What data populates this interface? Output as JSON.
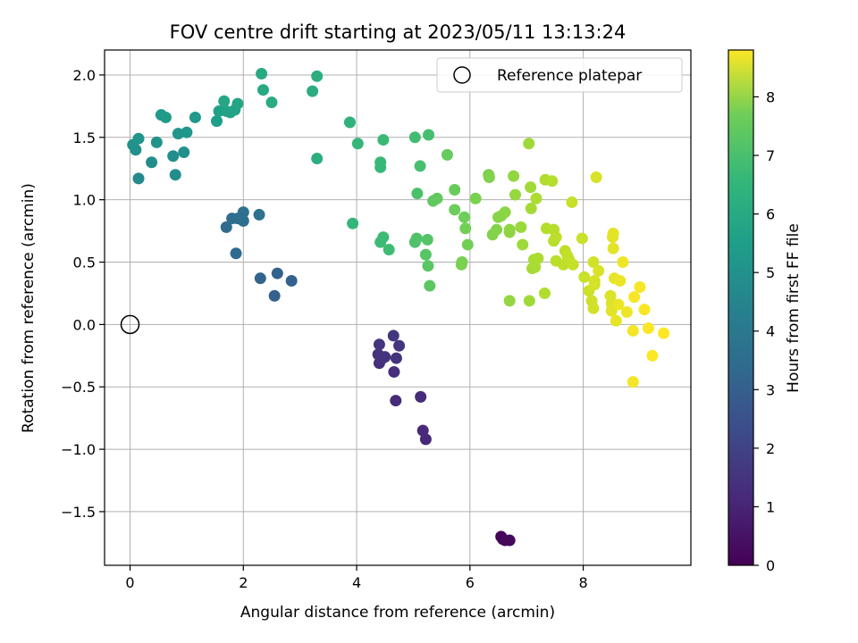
{
  "chart_data": {
    "type": "scatter",
    "title": "FOV centre drift starting at 2023/05/11 13:13:24",
    "xlabel": "Angular distance from reference (arcmin)",
    "ylabel": "Rotation from reference (arcmin)",
    "xlim": [
      -0.45,
      9.9
    ],
    "ylim": [
      -1.93,
      2.2
    ],
    "x_ticks": [
      0,
      2,
      4,
      6,
      8
    ],
    "x_tick_labels": [
      "0",
      "2",
      "4",
      "6",
      "8"
    ],
    "y_ticks": [
      -1.5,
      -1.0,
      -0.5,
      0.0,
      0.5,
      1.0,
      1.5,
      2.0
    ],
    "y_tick_labels": [
      "−1.5",
      "−1.0",
      "−0.5",
      "0.0",
      "0.5",
      "1.0",
      "1.5",
      "2.0"
    ],
    "grid": true,
    "legend": {
      "position": "top-right",
      "entries": [
        "Reference platepar"
      ]
    },
    "reference_point": {
      "name": "Reference platepar",
      "x": 0,
      "y": 0
    },
    "colorbar": {
      "label": "Hours from first FF file",
      "range": [
        0,
        8.8
      ],
      "ticks": [
        0,
        1,
        2,
        3,
        4,
        5,
        6,
        7,
        8
      ],
      "tick_labels": [
        "0",
        "1",
        "2",
        "3",
        "4",
        "5",
        "6",
        "7",
        "8"
      ],
      "colormap": "viridis"
    },
    "points": [
      {
        "x": 6.55,
        "y": -1.7,
        "c": 0.05
      },
      {
        "x": 6.58,
        "y": -1.72,
        "c": 0.1
      },
      {
        "x": 6.62,
        "y": -1.73,
        "c": 0.15
      },
      {
        "x": 6.7,
        "y": -1.73,
        "c": 0.2
      },
      {
        "x": 5.22,
        "y": -0.92,
        "c": 1.0
      },
      {
        "x": 5.17,
        "y": -0.85,
        "c": 1.05
      },
      {
        "x": 5.13,
        "y": -0.58,
        "c": 1.1
      },
      {
        "x": 4.69,
        "y": -0.61,
        "c": 1.1
      },
      {
        "x": 4.66,
        "y": -0.38,
        "c": 1.2
      },
      {
        "x": 4.4,
        "y": -0.31,
        "c": 1.2
      },
      {
        "x": 4.5,
        "y": -0.26,
        "c": 1.25
      },
      {
        "x": 4.38,
        "y": -0.24,
        "c": 1.25
      },
      {
        "x": 4.46,
        "y": -0.27,
        "c": 1.3
      },
      {
        "x": 4.7,
        "y": -0.27,
        "c": 1.3
      },
      {
        "x": 4.4,
        "y": -0.16,
        "c": 1.35
      },
      {
        "x": 4.75,
        "y": -0.17,
        "c": 1.35
      },
      {
        "x": 4.65,
        "y": -0.09,
        "c": 1.4
      },
      {
        "x": 2.55,
        "y": 0.23,
        "c": 2.7
      },
      {
        "x": 2.85,
        "y": 0.35,
        "c": 2.7
      },
      {
        "x": 2.6,
        "y": 0.41,
        "c": 2.75
      },
      {
        "x": 2.3,
        "y": 0.37,
        "c": 2.8
      },
      {
        "x": 1.87,
        "y": 0.57,
        "c": 3.0
      },
      {
        "x": 1.7,
        "y": 0.78,
        "c": 3.1
      },
      {
        "x": 1.8,
        "y": 0.85,
        "c": 3.15
      },
      {
        "x": 1.9,
        "y": 0.85,
        "c": 3.2
      },
      {
        "x": 2.0,
        "y": 0.83,
        "c": 3.2
      },
      {
        "x": 2.0,
        "y": 0.9,
        "c": 3.25
      },
      {
        "x": 2.28,
        "y": 0.88,
        "c": 3.3
      },
      {
        "x": 0.15,
        "y": 1.17,
        "c": 4.2
      },
      {
        "x": 0.8,
        "y": 1.2,
        "c": 4.3
      },
      {
        "x": 0.38,
        "y": 1.3,
        "c": 4.3
      },
      {
        "x": 0.76,
        "y": 1.35,
        "c": 4.35
      },
      {
        "x": 0.95,
        "y": 1.38,
        "c": 4.4
      },
      {
        "x": 0.1,
        "y": 1.4,
        "c": 4.4
      },
      {
        "x": 0.05,
        "y": 1.44,
        "c": 4.45
      },
      {
        "x": 0.47,
        "y": 1.46,
        "c": 4.5
      },
      {
        "x": 0.15,
        "y": 1.49,
        "c": 4.55
      },
      {
        "x": 0.85,
        "y": 1.53,
        "c": 4.6
      },
      {
        "x": 1.0,
        "y": 1.54,
        "c": 4.65
      },
      {
        "x": 1.15,
        "y": 1.66,
        "c": 4.7
      },
      {
        "x": 0.55,
        "y": 1.68,
        "c": 4.75
      },
      {
        "x": 0.63,
        "y": 1.66,
        "c": 4.8
      },
      {
        "x": 1.53,
        "y": 1.63,
        "c": 4.9
      },
      {
        "x": 1.57,
        "y": 1.71,
        "c": 5.0
      },
      {
        "x": 1.7,
        "y": 1.71,
        "c": 5.0
      },
      {
        "x": 1.77,
        "y": 1.7,
        "c": 5.05
      },
      {
        "x": 1.85,
        "y": 1.72,
        "c": 5.1
      },
      {
        "x": 1.9,
        "y": 1.77,
        "c": 5.15
      },
      {
        "x": 1.66,
        "y": 1.79,
        "c": 5.2
      },
      {
        "x": 2.35,
        "y": 1.88,
        "c": 5.3
      },
      {
        "x": 2.32,
        "y": 2.01,
        "c": 5.35
      },
      {
        "x": 2.5,
        "y": 1.78,
        "c": 5.4
      },
      {
        "x": 3.22,
        "y": 1.87,
        "c": 5.45
      },
      {
        "x": 3.3,
        "y": 1.99,
        "c": 5.5
      },
      {
        "x": 3.3,
        "y": 1.33,
        "c": 5.5
      },
      {
        "x": 3.88,
        "y": 1.62,
        "c": 5.65
      },
      {
        "x": 3.93,
        "y": 0.81,
        "c": 5.8
      },
      {
        "x": 4.02,
        "y": 1.45,
        "c": 5.8
      },
      {
        "x": 4.42,
        "y": 1.3,
        "c": 5.9
      },
      {
        "x": 4.42,
        "y": 1.26,
        "c": 5.9
      },
      {
        "x": 4.47,
        "y": 1.48,
        "c": 5.95
      },
      {
        "x": 4.42,
        "y": 0.66,
        "c": 6.0
      },
      {
        "x": 4.47,
        "y": 0.7,
        "c": 6.0
      },
      {
        "x": 4.57,
        "y": 0.6,
        "c": 6.05
      },
      {
        "x": 5.03,
        "y": 1.5,
        "c": 6.1
      },
      {
        "x": 5.27,
        "y": 1.52,
        "c": 6.15
      },
      {
        "x": 5.12,
        "y": 1.27,
        "c": 6.2
      },
      {
        "x": 5.07,
        "y": 1.05,
        "c": 6.25
      },
      {
        "x": 5.03,
        "y": 0.66,
        "c": 6.3
      },
      {
        "x": 5.06,
        "y": 0.69,
        "c": 6.35
      },
      {
        "x": 5.25,
        "y": 0.68,
        "c": 6.4
      },
      {
        "x": 5.22,
        "y": 0.56,
        "c": 6.45
      },
      {
        "x": 5.26,
        "y": 0.47,
        "c": 6.5
      },
      {
        "x": 5.29,
        "y": 0.31,
        "c": 6.55
      },
      {
        "x": 5.35,
        "y": 0.99,
        "c": 6.6
      },
      {
        "x": 5.42,
        "y": 1.01,
        "c": 6.65
      },
      {
        "x": 5.6,
        "y": 1.36,
        "c": 6.7
      },
      {
        "x": 5.73,
        "y": 1.08,
        "c": 6.75
      },
      {
        "x": 5.73,
        "y": 0.92,
        "c": 6.8
      },
      {
        "x": 5.9,
        "y": 0.86,
        "c": 6.85
      },
      {
        "x": 5.92,
        "y": 0.77,
        "c": 6.9
      },
      {
        "x": 5.96,
        "y": 0.64,
        "c": 6.9
      },
      {
        "x": 5.86,
        "y": 0.5,
        "c": 6.95
      },
      {
        "x": 5.85,
        "y": 0.48,
        "c": 7.0
      },
      {
        "x": 6.1,
        "y": 1.01,
        "c": 7.0
      },
      {
        "x": 6.33,
        "y": 1.2,
        "c": 7.05
      },
      {
        "x": 6.34,
        "y": 1.18,
        "c": 7.1
      },
      {
        "x": 6.4,
        "y": 0.72,
        "c": 7.1
      },
      {
        "x": 6.47,
        "y": 0.76,
        "c": 7.15
      },
      {
        "x": 6.5,
        "y": 0.86,
        "c": 7.2
      },
      {
        "x": 6.55,
        "y": 0.87,
        "c": 7.2
      },
      {
        "x": 6.62,
        "y": 0.9,
        "c": 7.25
      },
      {
        "x": 6.7,
        "y": 0.76,
        "c": 7.3
      },
      {
        "x": 6.7,
        "y": 0.74,
        "c": 7.3
      },
      {
        "x": 6.7,
        "y": 0.19,
        "c": 7.35
      },
      {
        "x": 6.77,
        "y": 1.19,
        "c": 7.35
      },
      {
        "x": 6.8,
        "y": 1.04,
        "c": 7.4
      },
      {
        "x": 6.9,
        "y": 0.78,
        "c": 7.45
      },
      {
        "x": 6.93,
        "y": 0.64,
        "c": 7.5
      },
      {
        "x": 7.04,
        "y": 1.45,
        "c": 7.5
      },
      {
        "x": 7.05,
        "y": 0.19,
        "c": 7.55
      },
      {
        "x": 7.07,
        "y": 1.1,
        "c": 7.55
      },
      {
        "x": 7.08,
        "y": 0.93,
        "c": 7.6
      },
      {
        "x": 7.1,
        "y": 0.45,
        "c": 7.6
      },
      {
        "x": 7.13,
        "y": 0.52,
        "c": 7.65
      },
      {
        "x": 7.15,
        "y": 0.46,
        "c": 7.65
      },
      {
        "x": 7.17,
        "y": 1.01,
        "c": 7.7
      },
      {
        "x": 7.2,
        "y": 0.53,
        "c": 7.7
      },
      {
        "x": 7.32,
        "y": 0.25,
        "c": 7.75
      },
      {
        "x": 7.33,
        "y": 1.16,
        "c": 7.75
      },
      {
        "x": 7.35,
        "y": 0.77,
        "c": 7.8
      },
      {
        "x": 7.45,
        "y": 1.15,
        "c": 7.8
      },
      {
        "x": 7.48,
        "y": 0.76,
        "c": 7.85
      },
      {
        "x": 7.48,
        "y": 0.67,
        "c": 7.85
      },
      {
        "x": 7.52,
        "y": 0.7,
        "c": 7.9
      },
      {
        "x": 7.52,
        "y": 0.51,
        "c": 7.9
      },
      {
        "x": 7.65,
        "y": 0.48,
        "c": 7.95
      },
      {
        "x": 7.68,
        "y": 0.59,
        "c": 7.95
      },
      {
        "x": 7.72,
        "y": 0.55,
        "c": 8.0
      },
      {
        "x": 7.75,
        "y": 0.52,
        "c": 8.0
      },
      {
        "x": 7.8,
        "y": 0.98,
        "c": 8.05
      },
      {
        "x": 7.82,
        "y": 0.48,
        "c": 8.05
      },
      {
        "x": 7.98,
        "y": 0.69,
        "c": 8.1
      },
      {
        "x": 8.02,
        "y": 0.38,
        "c": 8.1
      },
      {
        "x": 8.1,
        "y": 0.27,
        "c": 8.15
      },
      {
        "x": 8.15,
        "y": 0.19,
        "c": 8.15
      },
      {
        "x": 8.18,
        "y": 0.5,
        "c": 8.2
      },
      {
        "x": 8.18,
        "y": 0.13,
        "c": 8.2
      },
      {
        "x": 8.2,
        "y": 0.35,
        "c": 8.25
      },
      {
        "x": 8.2,
        "y": 0.32,
        "c": 8.25
      },
      {
        "x": 8.23,
        "y": 1.18,
        "c": 8.3
      },
      {
        "x": 8.27,
        "y": 0.43,
        "c": 8.3
      },
      {
        "x": 8.48,
        "y": 0.23,
        "c": 8.35
      },
      {
        "x": 8.5,
        "y": 0.17,
        "c": 8.35
      },
      {
        "x": 8.5,
        "y": 0.11,
        "c": 8.4
      },
      {
        "x": 8.52,
        "y": 0.7,
        "c": 8.4
      },
      {
        "x": 8.53,
        "y": 0.73,
        "c": 8.45
      },
      {
        "x": 8.53,
        "y": 0.61,
        "c": 8.45
      },
      {
        "x": 8.55,
        "y": 0.37,
        "c": 8.5
      },
      {
        "x": 8.58,
        "y": 0.03,
        "c": 8.5
      },
      {
        "x": 8.62,
        "y": 0.16,
        "c": 8.55
      },
      {
        "x": 8.65,
        "y": 0.35,
        "c": 8.55
      },
      {
        "x": 8.7,
        "y": 0.5,
        "c": 8.6
      },
      {
        "x": 8.77,
        "y": 0.1,
        "c": 8.6
      },
      {
        "x": 8.88,
        "y": -0.05,
        "c": 8.65
      },
      {
        "x": 8.88,
        "y": -0.46,
        "c": 8.65
      },
      {
        "x": 8.9,
        "y": 0.22,
        "c": 8.7
      },
      {
        "x": 9.0,
        "y": 0.3,
        "c": 8.7
      },
      {
        "x": 9.08,
        "y": 0.12,
        "c": 8.75
      },
      {
        "x": 9.15,
        "y": -0.03,
        "c": 8.75
      },
      {
        "x": 9.22,
        "y": -0.25,
        "c": 8.8
      },
      {
        "x": 9.42,
        "y": -0.07,
        "c": 8.8
      }
    ]
  }
}
